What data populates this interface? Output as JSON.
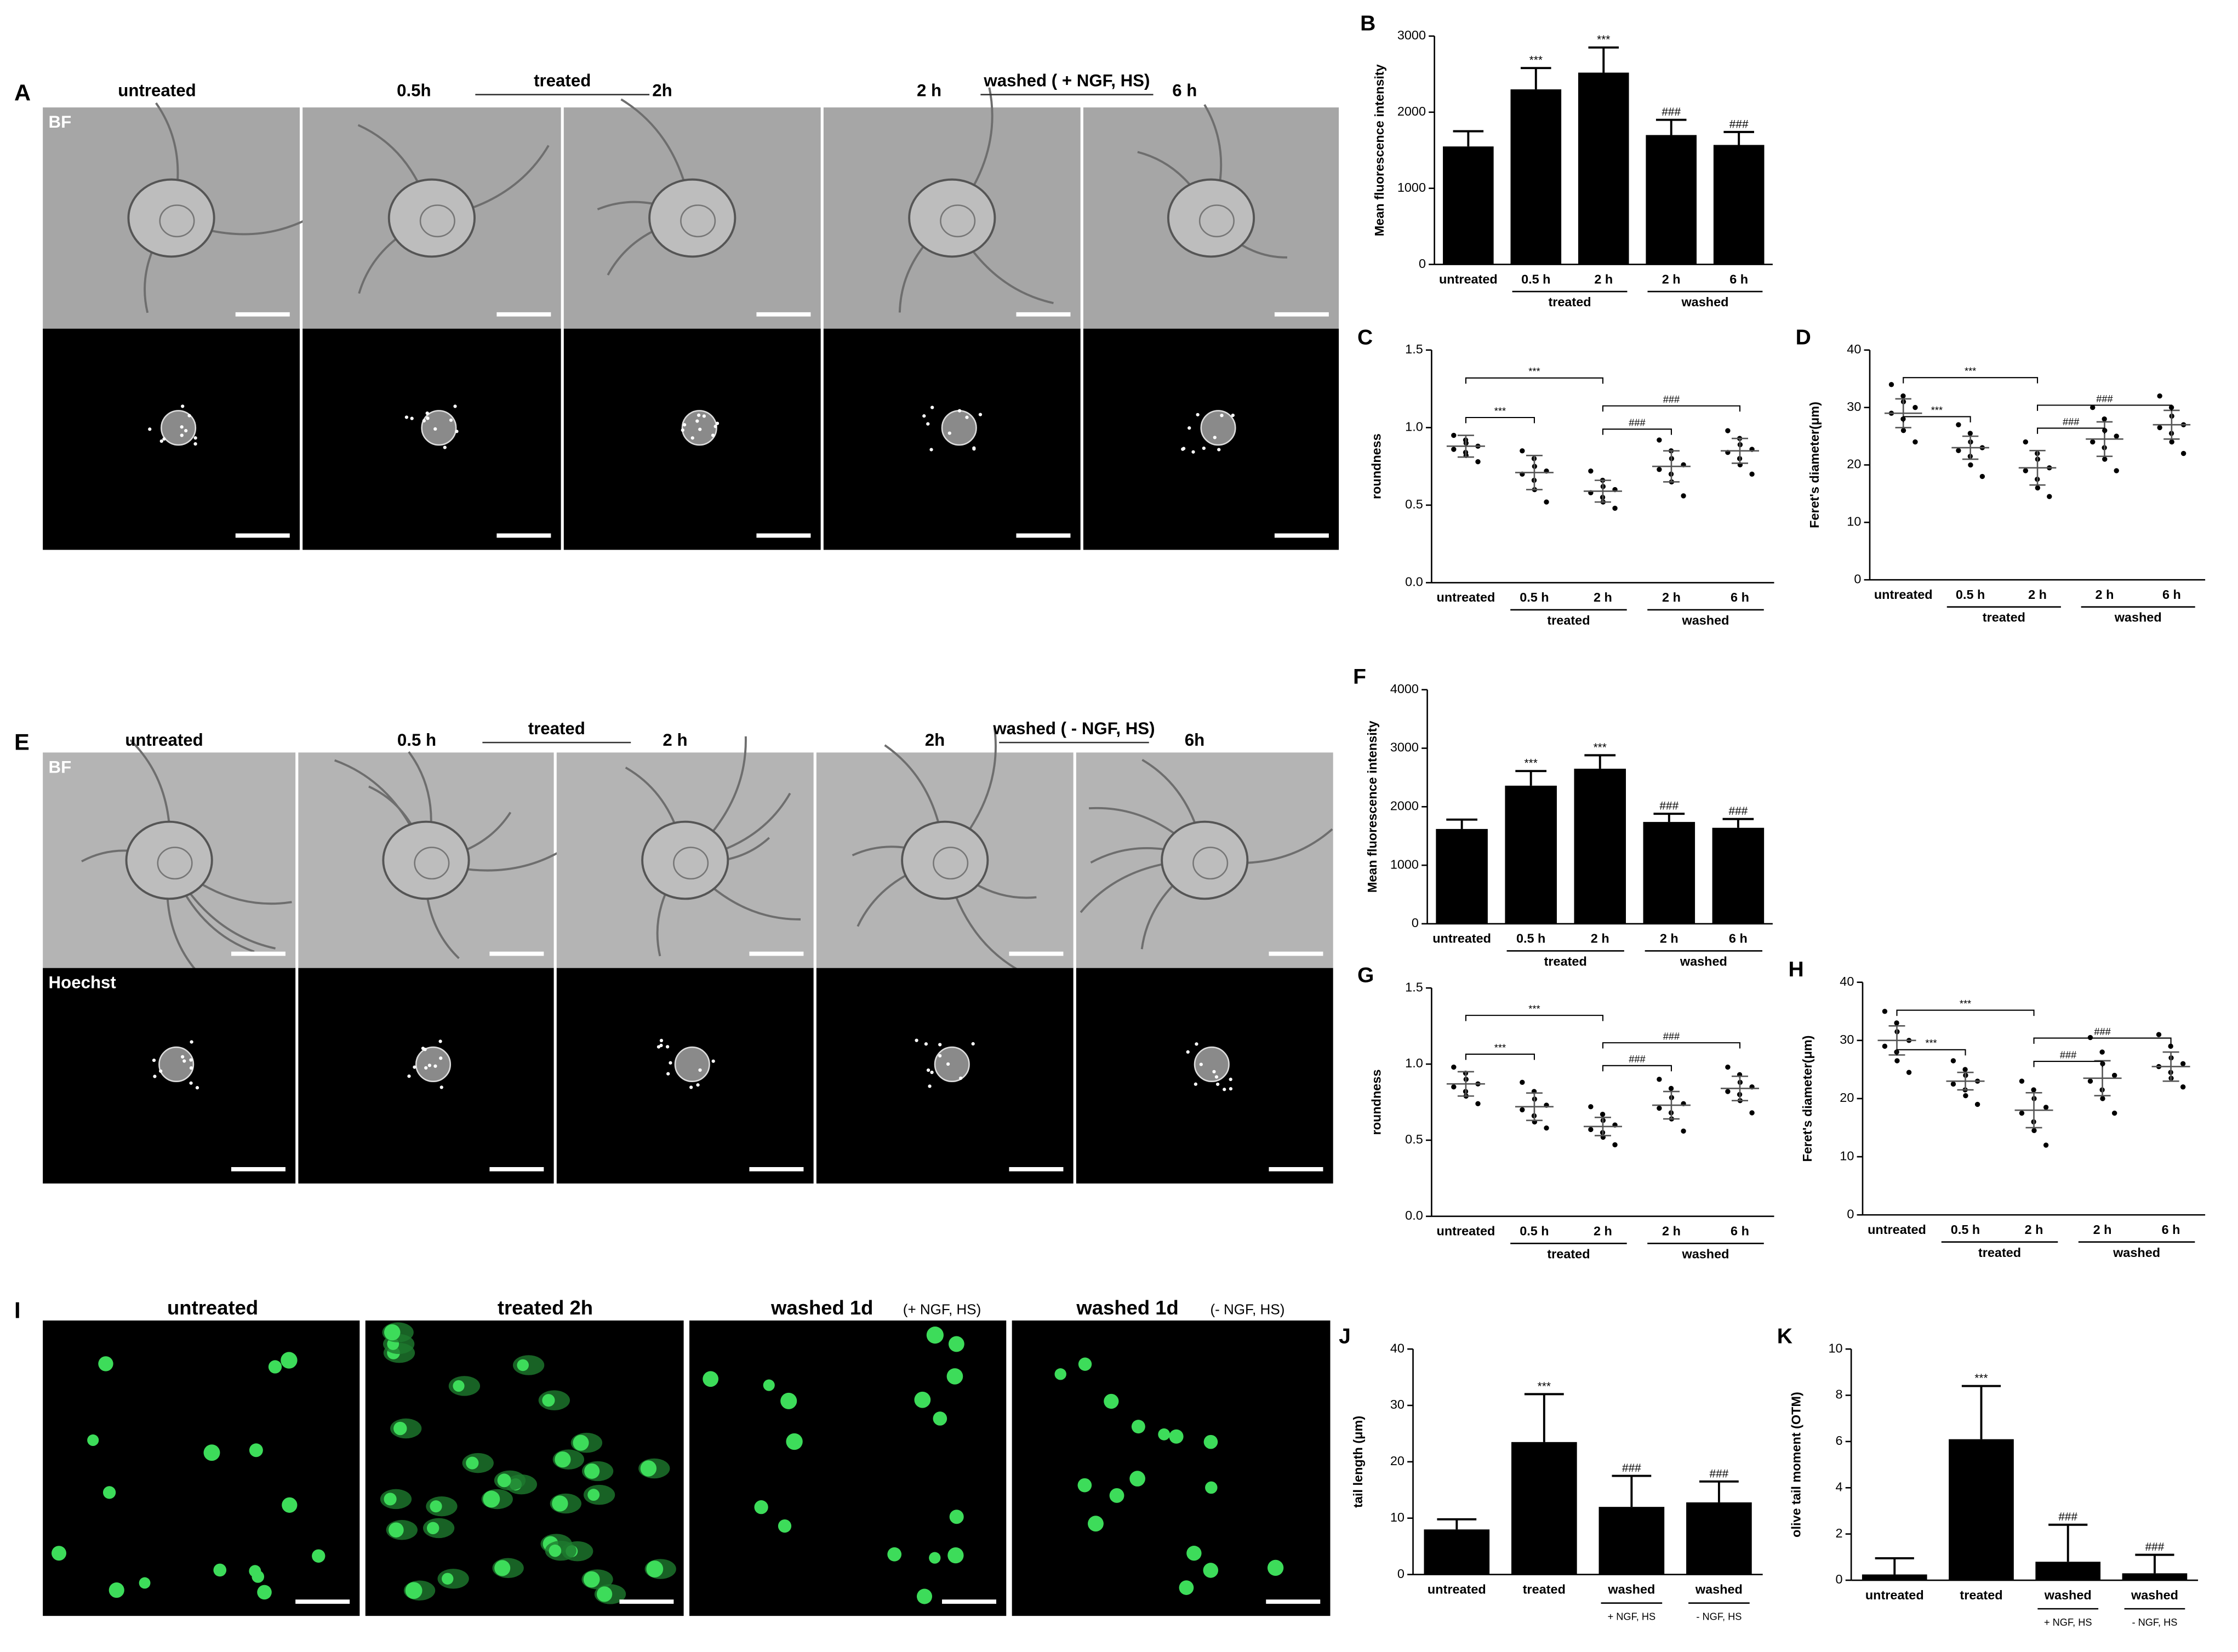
{
  "figure": {
    "panel_A": {
      "letter": "A",
      "columns": [
        "untreated",
        "0.5h",
        "2h",
        "2 h",
        "6 h"
      ],
      "group_labels": [
        "treated",
        "washed ( + NGF, HS)"
      ],
      "channels": [
        "BF"
      ]
    },
    "panel_E": {
      "letter": "E",
      "columns": [
        "untreated",
        "0.5 h",
        "2 h",
        "2h",
        "6h"
      ],
      "group_labels": [
        "treated",
        "washed ( - NGF, HS)"
      ],
      "channels": [
        "BF",
        "Hoechst"
      ]
    },
    "panel_I": {
      "letter": "I",
      "columns": [
        "untreated",
        "treated 2h",
        "washed 1d",
        "washed 1d"
      ],
      "column_notes": [
        null,
        null,
        "(+ NGF, HS)",
        "(- NGF, HS)"
      ]
    }
  },
  "chart_data": [
    {
      "type": "bar",
      "label": "B",
      "ylabel": "Mean fluorescence intensity",
      "color": "#000000",
      "categories": [
        "untreated",
        "0.5 h",
        "2 h",
        "2 h",
        "6 h"
      ],
      "groups": [
        {
          "label": "treated",
          "from": 1,
          "to": 2
        },
        {
          "label": "washed",
          "from": 3,
          "to": 4
        }
      ],
      "values": [
        1550,
        2300,
        2520,
        1700,
        1570
      ],
      "errors": [
        200,
        280,
        330,
        200,
        170
      ],
      "annotations": [
        {
          "index": 1,
          "label": "***"
        },
        {
          "index": 2,
          "label": "***"
        },
        {
          "index": 3,
          "label": "###"
        },
        {
          "index": 4,
          "label": "###"
        }
      ],
      "ylim": [
        0,
        3000
      ],
      "yticks": [
        0,
        1000,
        2000,
        3000
      ]
    },
    {
      "type": "dot",
      "label": "C",
      "ylabel": "roundness",
      "color": "#000000",
      "categories": [
        "untreated",
        "0.5 h",
        "2 h",
        "2 h",
        "6 h"
      ],
      "groups": [
        {
          "label": "treated",
          "from": 1,
          "to": 2
        },
        {
          "label": "washed",
          "from": 3,
          "to": 4
        }
      ],
      "points": [
        [
          0.95,
          0.92,
          0.9,
          0.88,
          0.86,
          0.84,
          0.82,
          0.78
        ],
        [
          0.85,
          0.8,
          0.75,
          0.72,
          0.7,
          0.66,
          0.6,
          0.52
        ],
        [
          0.72,
          0.66,
          0.62,
          0.6,
          0.58,
          0.55,
          0.52,
          0.48
        ],
        [
          0.92,
          0.85,
          0.8,
          0.76,
          0.73,
          0.7,
          0.65,
          0.56
        ],
        [
          0.98,
          0.93,
          0.89,
          0.86,
          0.84,
          0.8,
          0.76,
          0.7
        ]
      ],
      "means": [
        0.88,
        0.71,
        0.59,
        0.75,
        0.85
      ],
      "sd": [
        0.07,
        0.11,
        0.07,
        0.1,
        0.08
      ],
      "brackets": [
        {
          "from": 0,
          "to": 1,
          "label": "***"
        },
        {
          "from": 0,
          "to": 2,
          "label": "***"
        },
        {
          "from": 2,
          "to": 3,
          "label": "###"
        },
        {
          "from": 2,
          "to": 4,
          "label": "###"
        }
      ],
      "ylim": [
        0,
        1.5
      ],
      "yticks": [
        {
          "value": 0,
          "label": "0.0"
        },
        {
          "value": 0.5,
          "label": "0.5"
        },
        {
          "value": 1,
          "label": "1.0"
        },
        {
          "value": 1.5,
          "label": "1.5"
        }
      ]
    },
    {
      "type": "dot",
      "label": "D",
      "ylabel": "Feret's diameter(μm)",
      "color": "#000000",
      "categories": [
        "untreated",
        "0.5 h",
        "2 h",
        "2 h",
        "6 h"
      ],
      "groups": [
        {
          "label": "treated",
          "from": 1,
          "to": 2
        },
        {
          "label": "washed",
          "from": 3,
          "to": 4
        }
      ],
      "points": [
        [
          34,
          32,
          31,
          30,
          29,
          28,
          26,
          24
        ],
        [
          27,
          25.5,
          24,
          23,
          22.5,
          21.5,
          20,
          18
        ],
        [
          24,
          22,
          21,
          19.5,
          19,
          17.5,
          16,
          14.5
        ],
        [
          30,
          28,
          26,
          25,
          24,
          23,
          21,
          19
        ],
        [
          32,
          30,
          28.5,
          27,
          26.5,
          25.5,
          24,
          22
        ]
      ],
      "means": [
        29,
        23,
        19.5,
        24.5,
        27
      ],
      "sd": [
        2.5,
        2,
        3,
        3,
        2.5
      ],
      "brackets": [
        {
          "from": 0,
          "to": 1,
          "label": "***"
        },
        {
          "from": 0,
          "to": 2,
          "label": "***"
        },
        {
          "from": 2,
          "to": 3,
          "label": "###"
        },
        {
          "from": 2,
          "to": 4,
          "label": "###"
        }
      ],
      "ylim": [
        0,
        40
      ],
      "yticks": [
        0,
        10,
        20,
        30,
        40
      ]
    },
    {
      "type": "bar",
      "label": "F",
      "ylabel": "Mean fluorescence intensity",
      "color": "#000000",
      "categories": [
        "untreated",
        "0.5 h",
        "2 h",
        "2 h",
        "6 h"
      ],
      "groups": [
        {
          "label": "treated",
          "from": 1,
          "to": 2
        },
        {
          "label": "washed",
          "from": 3,
          "to": 4
        }
      ],
      "values": [
        1620,
        2360,
        2650,
        1740,
        1640
      ],
      "errors": [
        160,
        250,
        230,
        140,
        150
      ],
      "annotations": [
        {
          "index": 1,
          "label": "***"
        },
        {
          "index": 2,
          "label": "***"
        },
        {
          "index": 3,
          "label": "###"
        },
        {
          "index": 4,
          "label": "###"
        }
      ],
      "ylim": [
        0,
        4000
      ],
      "yticks": [
        0,
        1000,
        2000,
        3000,
        4000
      ]
    },
    {
      "type": "dot",
      "label": "G",
      "ylabel": "roundness",
      "color": "#000000",
      "categories": [
        "untreated",
        "0.5 h",
        "2 h",
        "2 h",
        "6 h"
      ],
      "groups": [
        {
          "label": "treated",
          "from": 1,
          "to": 2
        },
        {
          "label": "washed",
          "from": 3,
          "to": 4
        }
      ],
      "points": [
        [
          0.98,
          0.94,
          0.9,
          0.87,
          0.85,
          0.82,
          0.79,
          0.74
        ],
        [
          0.88,
          0.82,
          0.77,
          0.73,
          0.7,
          0.66,
          0.62,
          0.58
        ],
        [
          0.72,
          0.67,
          0.63,
          0.6,
          0.57,
          0.55,
          0.52,
          0.47
        ],
        [
          0.9,
          0.84,
          0.78,
          0.74,
          0.71,
          0.68,
          0.64,
          0.56
        ],
        [
          0.98,
          0.93,
          0.88,
          0.85,
          0.82,
          0.8,
          0.76,
          0.68
        ]
      ],
      "means": [
        0.87,
        0.72,
        0.59,
        0.73,
        0.84
      ],
      "sd": [
        0.08,
        0.09,
        0.06,
        0.09,
        0.08
      ],
      "brackets": [
        {
          "from": 0,
          "to": 1,
          "label": "***"
        },
        {
          "from": 0,
          "to": 2,
          "label": "***"
        },
        {
          "from": 2,
          "to": 3,
          "label": "###"
        },
        {
          "from": 2,
          "to": 4,
          "label": "###"
        }
      ],
      "ylim": [
        0,
        1.5
      ],
      "yticks": [
        {
          "value": 0,
          "label": "0.0"
        },
        {
          "value": 0.5,
          "label": "0.5"
        },
        {
          "value": 1,
          "label": "1.0"
        },
        {
          "value": 1.5,
          "label": "1.5"
        }
      ]
    },
    {
      "type": "dot",
      "label": "H",
      "ylabel": "Feret's diameter(μm)",
      "color": "#000000",
      "categories": [
        "untreated",
        "0.5 h",
        "2 h",
        "2 h",
        "6 h"
      ],
      "groups": [
        {
          "label": "treated",
          "from": 1,
          "to": 2
        },
        {
          "label": "washed",
          "from": 3,
          "to": 4
        }
      ],
      "points": [
        [
          35,
          33,
          31.5,
          30,
          29,
          28,
          26.5,
          24.5
        ],
        [
          26.5,
          25,
          24,
          23,
          22.5,
          21.5,
          20.5,
          19
        ],
        [
          23,
          21.5,
          20,
          18.5,
          17.5,
          16,
          14.5,
          12
        ],
        [
          30.5,
          28,
          26,
          24,
          23,
          21.5,
          20,
          17.5
        ],
        [
          31,
          29,
          27,
          26,
          25.5,
          24.5,
          23.5,
          22
        ]
      ],
      "means": [
        30,
        23,
        18,
        23.5,
        25.5
      ],
      "sd": [
        2.5,
        1.5,
        3,
        3,
        2.5
      ],
      "brackets": [
        {
          "from": 0,
          "to": 1,
          "label": "***"
        },
        {
          "from": 0,
          "to": 2,
          "label": "***"
        },
        {
          "from": 2,
          "to": 3,
          "label": "###"
        },
        {
          "from": 2,
          "to": 4,
          "label": "###"
        }
      ],
      "ylim": [
        0,
        40
      ],
      "yticks": [
        0,
        10,
        20,
        30,
        40
      ]
    },
    {
      "type": "bar",
      "label": "J",
      "ylabel": "tail length (μm)",
      "color": "#000000",
      "categories": [
        "untreated",
        "treated",
        "washed",
        "washed"
      ],
      "sublabels": [
        null,
        null,
        "+ NGF, HS",
        "- NGF, HS"
      ],
      "values": [
        8,
        23.5,
        12,
        12.8
      ],
      "errors": [
        1.8,
        8.5,
        5.5,
        3.7
      ],
      "annotations": [
        {
          "index": 1,
          "label": "***"
        },
        {
          "index": 2,
          "label": "###"
        },
        {
          "index": 3,
          "label": "###"
        }
      ],
      "ylim": [
        0,
        40
      ],
      "yticks": [
        0,
        10,
        20,
        30,
        40
      ]
    },
    {
      "type": "bar",
      "label": "K",
      "ylabel": "olive tail moment (OTM)",
      "color": "#000000",
      "categories": [
        "untreated",
        "treated",
        "washed",
        "washed"
      ],
      "sublabels": [
        null,
        null,
        "+ NGF, HS",
        "- NGF, HS"
      ],
      "values": [
        0.25,
        6.1,
        0.8,
        0.3
      ],
      "errors": [
        0.7,
        2.3,
        1.6,
        0.8
      ],
      "annotations": [
        {
          "index": 1,
          "label": "***"
        },
        {
          "index": 2,
          "label": "###"
        },
        {
          "index": 3,
          "label": "###"
        }
      ],
      "ylim": [
        0,
        10
      ],
      "yticks": [
        0,
        2,
        4,
        6,
        8,
        10
      ]
    }
  ]
}
